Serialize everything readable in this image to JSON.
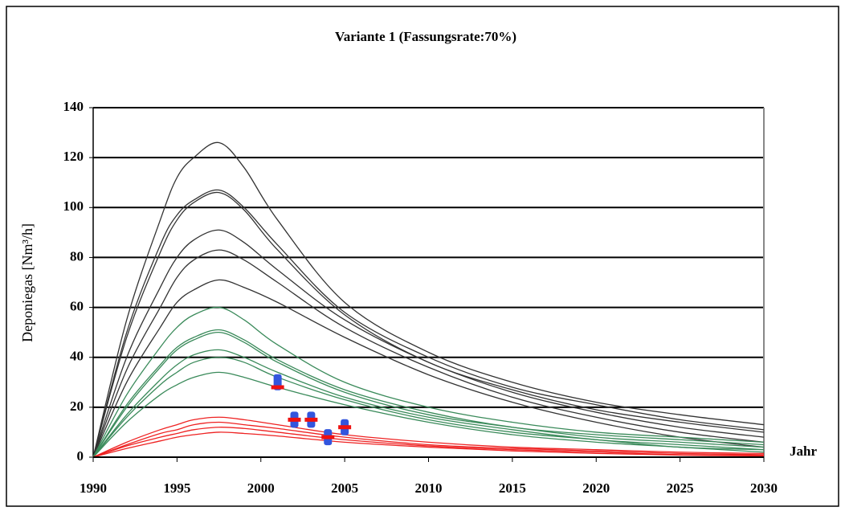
{
  "chart_data": {
    "type": "line",
    "title": "Variante 1 (Fassungsrate:70%)",
    "y_label": "Deponiegas [Nm³/h]",
    "x_label": "Jahr",
    "xlim": [
      1990,
      2030
    ],
    "xticks": [
      1990,
      1995,
      2000,
      2005,
      2010,
      2015,
      2020,
      2025,
      2030
    ],
    "ylim": [
      0,
      140
    ],
    "yticks": [
      0,
      20,
      40,
      60,
      80,
      100,
      120,
      140
    ],
    "grid": true,
    "x": [
      1990,
      1992,
      1994,
      1995,
      1996,
      1997.5,
      1999,
      2001,
      2005,
      2010,
      2015,
      2020,
      2025,
      2030
    ],
    "series": [
      {
        "color": "#333333",
        "values": [
          0,
          55,
          95,
          112,
          120,
          126,
          116,
          95,
          62,
          42,
          30,
          22,
          17,
          13
        ]
      },
      {
        "color": "#333333",
        "values": [
          0,
          50,
          85,
          97,
          103,
          107,
          100,
          85,
          58,
          40,
          28,
          21,
          15,
          11
        ]
      },
      {
        "color": "#333333",
        "values": [
          0,
          48,
          82,
          95,
          102,
          106,
          99,
          83,
          57,
          38,
          27,
          19,
          14,
          10
        ]
      },
      {
        "color": "#333333",
        "values": [
          0,
          40,
          68,
          80,
          87,
          91,
          86,
          75,
          55,
          38,
          26,
          18,
          12,
          8
        ]
      },
      {
        "color": "#333333",
        "values": [
          0,
          35,
          60,
          72,
          79,
          83,
          79,
          70,
          52,
          36,
          24,
          16,
          10,
          6
        ]
      },
      {
        "color": "#333333",
        "values": [
          0,
          30,
          52,
          62,
          67,
          71,
          68,
          62,
          48,
          33,
          22,
          14,
          8,
          4
        ]
      },
      {
        "color": "#3a8a5a",
        "values": [
          0,
          25,
          44,
          52,
          57,
          60,
          55,
          45,
          30,
          20,
          14,
          10,
          8,
          6
        ]
      },
      {
        "color": "#3a8a5a",
        "values": [
          0,
          21,
          37,
          44,
          48,
          51,
          47,
          39,
          27,
          18,
          12,
          9,
          7,
          5
        ]
      },
      {
        "color": "#3a8a5a",
        "values": [
          0,
          20,
          36,
          43,
          47,
          50,
          46,
          38,
          26,
          17,
          12,
          8,
          6,
          4
        ]
      },
      {
        "color": "#3a8a5a",
        "values": [
          0,
          17,
          31,
          37,
          41,
          43,
          40,
          34,
          24,
          16,
          11,
          7,
          5,
          3
        ]
      },
      {
        "color": "#3a8a5a",
        "values": [
          0,
          16,
          29,
          34,
          38,
          40,
          38,
          32,
          23,
          15,
          10,
          7,
          4,
          3
        ]
      },
      {
        "color": "#3a8a5a",
        "values": [
          0,
          14,
          25,
          29,
          32,
          34,
          32,
          28,
          21,
          14,
          9,
          6,
          4,
          2
        ]
      },
      {
        "color": "#ee2222",
        "values": [
          0,
          6,
          11,
          13,
          15,
          16,
          15,
          13,
          9,
          6,
          4,
          3,
          2,
          1.5
        ]
      },
      {
        "color": "#ee2222",
        "values": [
          0,
          5,
          9.5,
          11,
          13,
          14,
          13,
          11.5,
          8,
          5,
          3.5,
          2.5,
          1.5,
          1
        ]
      },
      {
        "color": "#ee2222",
        "values": [
          0,
          4.5,
          8,
          9.5,
          11,
          12,
          11.5,
          10,
          7,
          4.5,
          3,
          2,
          1,
          0.7
        ]
      },
      {
        "color": "#ee2222",
        "values": [
          0,
          3.5,
          6.5,
          8,
          9,
          10,
          9.5,
          8.5,
          6,
          4,
          2.5,
          1.5,
          0.8,
          0.5
        ]
      }
    ],
    "points_x": [
      2001,
      2002,
      2003,
      2004,
      2005
    ],
    "points": [
      {
        "color": "#3355dd",
        "marker": "rect",
        "values": [
          30,
          15,
          15,
          8,
          12
        ]
      },
      {
        "color": "#ee1111",
        "marker": "dash",
        "values": [
          28,
          15,
          15,
          8,
          12
        ]
      }
    ]
  }
}
